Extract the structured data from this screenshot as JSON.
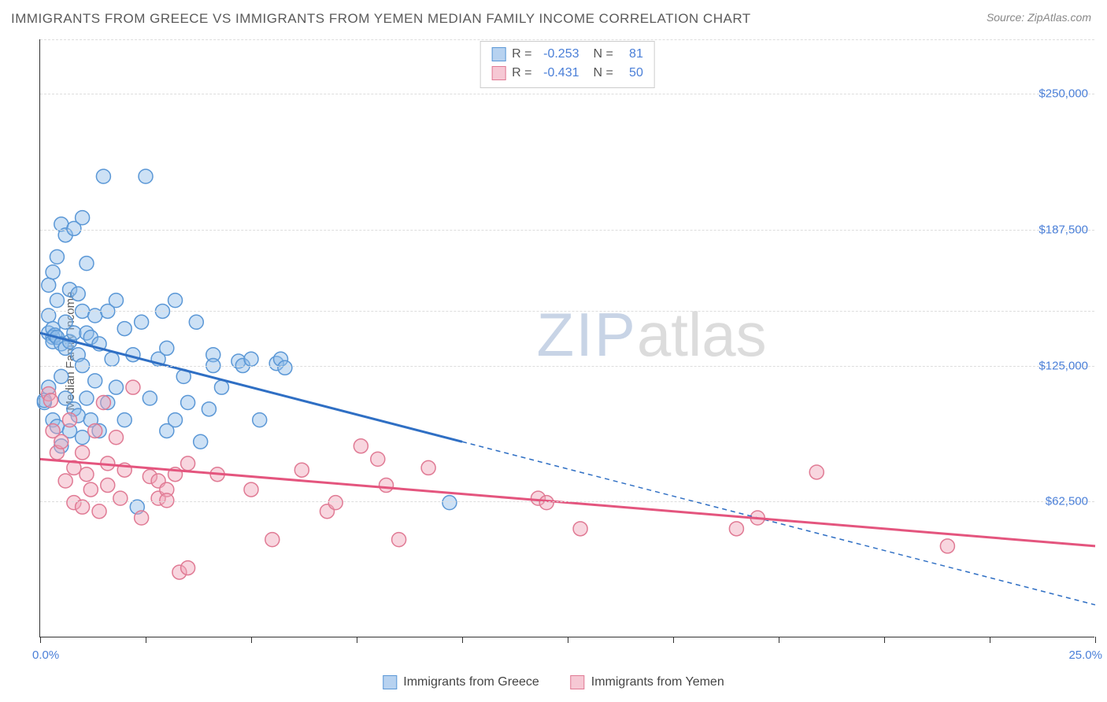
{
  "title": "IMMIGRANTS FROM GREECE VS IMMIGRANTS FROM YEMEN MEDIAN FAMILY INCOME CORRELATION CHART",
  "source": "Source: ZipAtlas.com",
  "yaxis_label": "Median Family Income",
  "watermark": {
    "part1": "ZIP",
    "part2": "atlas"
  },
  "chart": {
    "type": "scatter",
    "background_color": "#ffffff",
    "grid_color": "#dddddd",
    "axis_color": "#333333",
    "label_color": "#4a7fd8",
    "title_color": "#5a5a5a",
    "title_fontsize": 17,
    "label_fontsize": 15,
    "xlim": [
      0,
      25
    ],
    "ylim": [
      0,
      275000
    ],
    "x_ticks": [
      0,
      2.5,
      5,
      7.5,
      10,
      12.5,
      15,
      17.5,
      20,
      22.5,
      25
    ],
    "x_label_min": "0.0%",
    "x_label_max": "25.0%",
    "y_gridlines": [
      62500,
      125000,
      150000,
      187500,
      250000,
      275000
    ],
    "y_labels": [
      {
        "value": 62500,
        "text": "$62,500"
      },
      {
        "value": 125000,
        "text": "$125,000"
      },
      {
        "value": 187500,
        "text": "$187,500"
      },
      {
        "value": 250000,
        "text": "$250,000"
      }
    ],
    "marker_radius": 9,
    "marker_stroke_width": 1.5,
    "trend_line_width": 3,
    "trend_dash_pattern": "6,5"
  },
  "stats": [
    {
      "r_label": "R =",
      "r": "-0.253",
      "n_label": "N =",
      "n": "81",
      "swatch_fill": "#b7d2f0",
      "swatch_border": "#5a97d6"
    },
    {
      "r_label": "R =",
      "r": "-0.431",
      "n_label": "N =",
      "n": "50",
      "swatch_fill": "#f6c8d4",
      "swatch_border": "#e07a94"
    }
  ],
  "legend": [
    {
      "label": "Immigrants from Greece",
      "swatch_fill": "#b7d2f0",
      "swatch_border": "#5a97d6"
    },
    {
      "label": "Immigrants from Yemen",
      "swatch_fill": "#f6c8d4",
      "swatch_border": "#e07a94"
    }
  ],
  "series": [
    {
      "name": "Immigrants from Greece",
      "fill": "rgba(144,188,232,0.45)",
      "stroke": "#5a97d6",
      "trend_color": "#2f6fc4",
      "trend": {
        "x1": 0,
        "y1": 140000,
        "x2": 10,
        "y2": 90000,
        "ext_x2": 25,
        "ext_y2": 15000
      },
      "points": [
        [
          0.1,
          108000
        ],
        [
          0.1,
          109000
        ],
        [
          0.2,
          115000
        ],
        [
          0.2,
          140000
        ],
        [
          0.2,
          148000
        ],
        [
          0.2,
          162000
        ],
        [
          0.3,
          100000
        ],
        [
          0.3,
          142000
        ],
        [
          0.3,
          168000
        ],
        [
          0.3,
          138000
        ],
        [
          0.3,
          136000
        ],
        [
          0.35,
          139000
        ],
        [
          0.4,
          97000
        ],
        [
          0.4,
          138000
        ],
        [
          0.4,
          155000
        ],
        [
          0.4,
          175000
        ],
        [
          0.5,
          88000
        ],
        [
          0.5,
          120000
        ],
        [
          0.5,
          135000
        ],
        [
          0.5,
          190000
        ],
        [
          0.6,
          110000
        ],
        [
          0.6,
          133000
        ],
        [
          0.6,
          145000
        ],
        [
          0.6,
          185000
        ],
        [
          0.7,
          95000
        ],
        [
          0.7,
          136000
        ],
        [
          0.7,
          160000
        ],
        [
          0.8,
          105000
        ],
        [
          0.8,
          140000
        ],
        [
          0.8,
          188000
        ],
        [
          0.9,
          102000
        ],
        [
          0.9,
          130000
        ],
        [
          0.9,
          158000
        ],
        [
          1.0,
          92000
        ],
        [
          1.0,
          125000
        ],
        [
          1.0,
          150000
        ],
        [
          1.0,
          193000
        ],
        [
          1.1,
          110000
        ],
        [
          1.1,
          140000
        ],
        [
          1.1,
          172000
        ],
        [
          1.2,
          100000
        ],
        [
          1.2,
          138000
        ],
        [
          1.3,
          118000
        ],
        [
          1.3,
          148000
        ],
        [
          1.4,
          95000
        ],
        [
          1.4,
          135000
        ],
        [
          1.5,
          212000
        ],
        [
          1.6,
          108000
        ],
        [
          1.6,
          150000
        ],
        [
          1.7,
          128000
        ],
        [
          1.8,
          115000
        ],
        [
          1.8,
          155000
        ],
        [
          2.0,
          100000
        ],
        [
          2.0,
          142000
        ],
        [
          2.2,
          130000
        ],
        [
          2.3,
          60000
        ],
        [
          2.4,
          145000
        ],
        [
          2.5,
          212000
        ],
        [
          2.6,
          110000
        ],
        [
          2.8,
          128000
        ],
        [
          2.9,
          150000
        ],
        [
          3.0,
          95000
        ],
        [
          3.0,
          133000
        ],
        [
          3.2,
          155000
        ],
        [
          3.2,
          100000
        ],
        [
          3.4,
          120000
        ],
        [
          3.5,
          108000
        ],
        [
          3.7,
          145000
        ],
        [
          3.8,
          90000
        ],
        [
          4.0,
          105000
        ],
        [
          4.1,
          130000
        ],
        [
          4.1,
          125000
        ],
        [
          4.3,
          115000
        ],
        [
          4.7,
          127000
        ],
        [
          4.8,
          125000
        ],
        [
          5.0,
          128000
        ],
        [
          5.2,
          100000
        ],
        [
          5.6,
          126000
        ],
        [
          5.7,
          128000
        ],
        [
          5.8,
          124000
        ],
        [
          9.7,
          62000
        ]
      ]
    },
    {
      "name": "Immigrants from Yemen",
      "fill": "rgba(240,165,185,0.45)",
      "stroke": "#e07a94",
      "trend_color": "#e4557e",
      "trend": {
        "x1": 0,
        "y1": 82000,
        "x2": 25,
        "y2": 42000
      },
      "points": [
        [
          0.2,
          112000
        ],
        [
          0.25,
          109000
        ],
        [
          0.3,
          95000
        ],
        [
          0.4,
          85000
        ],
        [
          0.5,
          90000
        ],
        [
          0.6,
          72000
        ],
        [
          0.7,
          100000
        ],
        [
          0.8,
          78000
        ],
        [
          0.8,
          62000
        ],
        [
          1.0,
          60000
        ],
        [
          1.0,
          85000
        ],
        [
          1.1,
          75000
        ],
        [
          1.2,
          68000
        ],
        [
          1.3,
          95000
        ],
        [
          1.4,
          58000
        ],
        [
          1.5,
          108000
        ],
        [
          1.6,
          70000
        ],
        [
          1.6,
          80000
        ],
        [
          1.8,
          92000
        ],
        [
          1.9,
          64000
        ],
        [
          2.0,
          77000
        ],
        [
          2.2,
          115000
        ],
        [
          2.4,
          55000
        ],
        [
          2.6,
          74000
        ],
        [
          2.8,
          72000
        ],
        [
          2.8,
          64000
        ],
        [
          3.0,
          68000
        ],
        [
          3.0,
          63000
        ],
        [
          3.2,
          75000
        ],
        [
          3.3,
          30000
        ],
        [
          3.5,
          32000
        ],
        [
          3.5,
          80000
        ],
        [
          4.2,
          75000
        ],
        [
          5.0,
          68000
        ],
        [
          5.5,
          45000
        ],
        [
          6.2,
          77000
        ],
        [
          6.8,
          58000
        ],
        [
          7.0,
          62000
        ],
        [
          7.6,
          88000
        ],
        [
          8.0,
          82000
        ],
        [
          8.2,
          70000
        ],
        [
          8.5,
          45000
        ],
        [
          9.2,
          78000
        ],
        [
          11.8,
          64000
        ],
        [
          12.0,
          62000
        ],
        [
          12.8,
          50000
        ],
        [
          16.5,
          50000
        ],
        [
          17.0,
          55000
        ],
        [
          18.4,
          76000
        ],
        [
          21.5,
          42000
        ]
      ]
    }
  ]
}
